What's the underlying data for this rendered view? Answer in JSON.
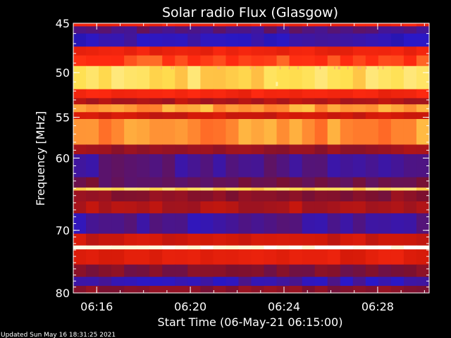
{
  "chart_data": {
    "type": "heatmap",
    "title": "Solar radio Flux (Glasgow)",
    "xlabel": "Start Time (06-May-21 06:15:00)",
    "ylabel": "Frequency [MHz]",
    "x_range_minutes": [
      0,
      15.2
    ],
    "x_ticks": [
      {
        "label": "06:16",
        "minute": 1
      },
      {
        "label": "06:20",
        "minute": 5
      },
      {
        "label": "06:24",
        "minute": 9
      },
      {
        "label": "06:28",
        "minute": 13
      }
    ],
    "ylim": [
      45,
      80
    ],
    "y_ticks": [
      45,
      50,
      55,
      60,
      70,
      80
    ],
    "y_scale": "log",
    "colormap": [
      "#1a0a3a",
      "#2a18c8",
      "#7a1030",
      "#d01808",
      "#ff2a10",
      "#ffe050",
      "#ffffff"
    ],
    "frequency_bands": [
      {
        "f0": 45.0,
        "f1": 45.3,
        "level": 0.62
      },
      {
        "f0": 45.3,
        "f1": 46.0,
        "level": 0.25
      },
      {
        "f0": 46.0,
        "f1": 47.3,
        "level": 0.18
      },
      {
        "f0": 47.3,
        "f1": 48.2,
        "level": 0.6
      },
      {
        "f0": 48.2,
        "f1": 49.3,
        "level": 0.7
      },
      {
        "f0": 49.3,
        "f1": 51.8,
        "level": 0.84
      },
      {
        "f0": 51.8,
        "f1": 52.8,
        "level": 0.62
      },
      {
        "f0": 52.8,
        "f1": 53.5,
        "level": 0.44
      },
      {
        "f0": 53.5,
        "f1": 54.4,
        "level": 0.78
      },
      {
        "f0": 54.4,
        "f1": 55.2,
        "level": 0.5
      },
      {
        "f0": 55.2,
        "f1": 58.3,
        "level": 0.76
      },
      {
        "f0": 58.3,
        "f1": 59.5,
        "level": 0.4
      },
      {
        "f0": 59.5,
        "f1": 62.5,
        "level": 0.24
      },
      {
        "f0": 62.5,
        "f1": 63.9,
        "level": 0.3
      },
      {
        "f0": 63.9,
        "f1": 64.3,
        "level": 0.85
      },
      {
        "f0": 64.3,
        "f1": 65.8,
        "level": 0.36
      },
      {
        "f0": 65.8,
        "f1": 67.5,
        "level": 0.44
      },
      {
        "f0": 67.5,
        "f1": 70.5,
        "level": 0.22
      },
      {
        "f0": 70.5,
        "f1": 72.3,
        "level": 0.5
      },
      {
        "f0": 72.3,
        "f1": 72.9,
        "level": 0.99
      },
      {
        "f0": 72.9,
        "f1": 75.3,
        "level": 0.56
      },
      {
        "f0": 75.3,
        "f1": 77.3,
        "level": 0.34
      },
      {
        "f0": 77.3,
        "f1": 78.8,
        "level": 0.2
      },
      {
        "f0": 78.8,
        "f1": 80.0,
        "level": 0.36
      }
    ]
  },
  "footer": {
    "updated": "Updated Sun May 16 18:31:25 2021"
  }
}
